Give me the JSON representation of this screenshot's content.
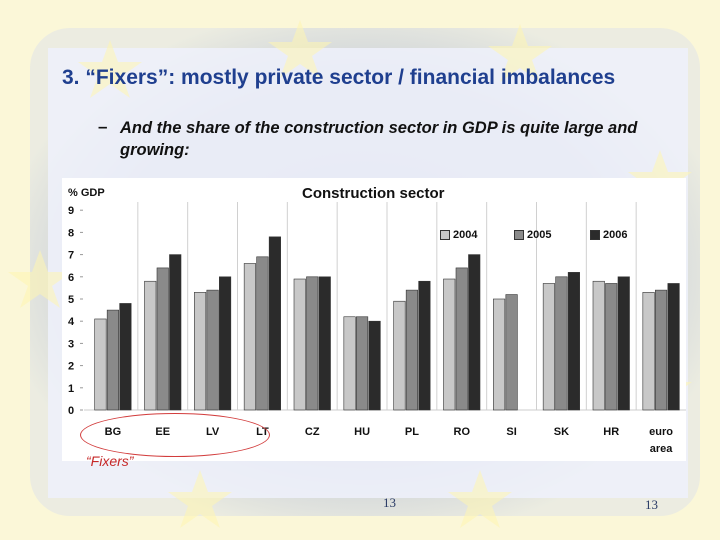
{
  "slide": {
    "title": "3. “Fixers”: mostly private sector / financial imbalances",
    "bullet_dash": "–",
    "bullet_text": "And the share of the construction sector in GDP is quite large and growing:",
    "fixers_label": "“Fixers”",
    "page_number_center": "13",
    "page_number_right": "13"
  },
  "colors": {
    "title": "#1f3f8f",
    "series_2004": "#c8c8c8",
    "series_2005": "#8a8a8a",
    "series_2006": "#2b2b2b",
    "fixers_highlight": "#d23c3c"
  },
  "chart_data": {
    "type": "bar",
    "title": "Construction sector",
    "ylabel": "% GDP",
    "xlabel": "",
    "ylim": [
      0,
      9
    ],
    "yticks": [
      "0",
      "1",
      "2",
      "3",
      "4",
      "5",
      "6",
      "7",
      "8",
      "9"
    ],
    "grid": false,
    "legend_position": "top-right",
    "categories": [
      "BG",
      "EE",
      "LV",
      "LT",
      "CZ",
      "HU",
      "PL",
      "RO",
      "SI",
      "SK",
      "HR",
      "euro area"
    ],
    "series": [
      {
        "name": "2004",
        "color": "#c8c8c8",
        "values": [
          4.1,
          5.8,
          5.3,
          6.6,
          5.9,
          4.2,
          4.9,
          5.9,
          5.0,
          5.7,
          5.8,
          5.3
        ]
      },
      {
        "name": "2005",
        "color": "#8a8a8a",
        "values": [
          4.5,
          6.4,
          5.4,
          6.9,
          6.0,
          4.2,
          5.4,
          6.4,
          5.2,
          6.0,
          5.7,
          5.4
        ]
      },
      {
        "name": "2006",
        "color": "#2b2b2b",
        "values": [
          4.8,
          7.0,
          6.0,
          7.8,
          6.0,
          4.0,
          5.8,
          7.0,
          null,
          6.2,
          6.0,
          5.7
        ]
      }
    ]
  }
}
